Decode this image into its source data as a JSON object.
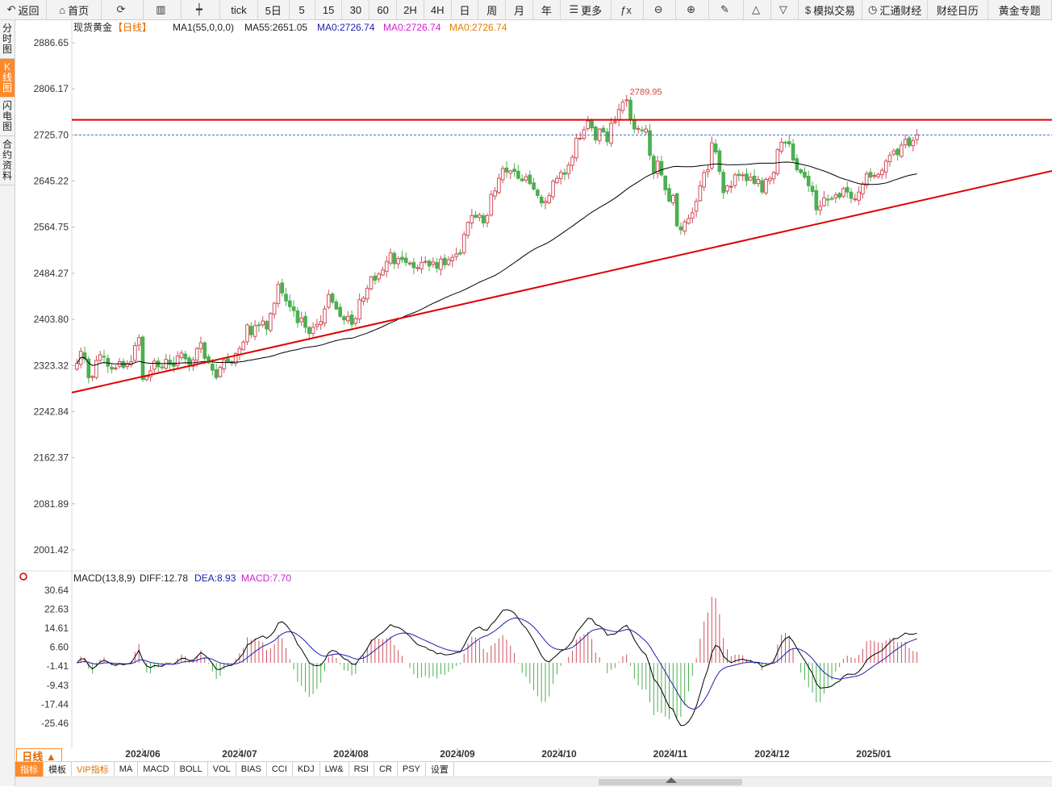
{
  "toolbar": {
    "items": [
      {
        "name": "back-button",
        "icon": "↶",
        "label": "返回"
      },
      {
        "name": "home-button",
        "icon": "⌂",
        "label": "首页"
      },
      {
        "name": "refresh-button",
        "icon": "⟳",
        "label": ""
      },
      {
        "name": "chart-type-button",
        "icon": "▥",
        "label": ""
      },
      {
        "name": "candle-type-button",
        "icon": "┿",
        "label": ""
      },
      {
        "name": "period-tick",
        "icon": "",
        "label": "tick"
      },
      {
        "name": "period-5day",
        "icon": "",
        "label": "5日"
      },
      {
        "name": "period-5",
        "icon": "",
        "label": "5"
      },
      {
        "name": "period-15",
        "icon": "",
        "label": "15"
      },
      {
        "name": "period-30",
        "icon": "",
        "label": "30"
      },
      {
        "name": "period-60",
        "icon": "",
        "label": "60"
      },
      {
        "name": "period-2h",
        "icon": "",
        "label": "2H"
      },
      {
        "name": "period-4h",
        "icon": "",
        "label": "4H"
      },
      {
        "name": "period-day",
        "icon": "",
        "label": "日"
      },
      {
        "name": "period-week",
        "icon": "",
        "label": "周"
      },
      {
        "name": "period-month",
        "icon": "",
        "label": "月"
      },
      {
        "name": "period-year",
        "icon": "",
        "label": "年"
      },
      {
        "name": "more-button",
        "icon": "☰",
        "label": "更多"
      },
      {
        "name": "formula-button",
        "icon": "ƒx",
        "label": ""
      },
      {
        "name": "zoom-out-button",
        "icon": "⊖",
        "label": ""
      },
      {
        "name": "zoom-in-button",
        "icon": "⊕",
        "label": ""
      },
      {
        "name": "draw-button",
        "icon": "✎",
        "label": ""
      },
      {
        "name": "up-triangle-button",
        "icon": "△",
        "label": ""
      },
      {
        "name": "down-triangle-button",
        "icon": "▽",
        "label": ""
      },
      {
        "name": "sim-trade-button",
        "icon": "$",
        "label": "模拟交易"
      },
      {
        "name": "fx168-button",
        "icon": "◷",
        "label": "汇通财经"
      },
      {
        "name": "calendar-button",
        "icon": "",
        "label": "财经日历"
      },
      {
        "name": "gold-topic-button",
        "icon": "",
        "label": "黄金专题"
      }
    ]
  },
  "sidetabs": [
    {
      "label": "分时图",
      "active": false
    },
    {
      "label": "K线图",
      "active": true
    },
    {
      "label": "闪电图",
      "active": false
    },
    {
      "label": "合约资料",
      "active": false
    }
  ],
  "legend": {
    "symbol": "现货黄金",
    "period": "【日线】",
    "ma1": "MA1(55,0,0,0)",
    "ma55": "MA55:2651.05",
    "ma0_a": "MA0:2726.74",
    "ma0_b": "MA0:2726.74",
    "ma0_c": "MA0:2726.74"
  },
  "macd_legend": {
    "name": "MACD(13,8,9)",
    "diff": "DIFF:12.78",
    "dea": "DEA:8.93",
    "macd": "MACD:7.70"
  },
  "colors": {
    "up": "#d0505a",
    "down": "#4caf50",
    "trendline": "#e00000",
    "ma": "#000000",
    "diff": "#000000",
    "dea": "#2020b0",
    "current_price_line": "#3a6fd0",
    "peak_label": "#e04040"
  },
  "chart_data": [
    {
      "type": "candlestick",
      "title": "现货黄金 【日线】",
      "y_ticks": [
        2886.65,
        2806.17,
        2725.7,
        2645.22,
        2564.75,
        2484.27,
        2403.8,
        2323.32,
        2242.84,
        2162.37,
        2081.89,
        2001.42
      ],
      "ylim": [
        1969,
        2912
      ],
      "x_ticks": [
        "2024/06",
        "2024/07",
        "2024/08",
        "2024/09",
        "2024/10",
        "2024/11",
        "2024/12",
        "2025/01"
      ],
      "peak_label": "2789.95",
      "current_price": 2725.7,
      "horizontal_line": 2752,
      "ohlc_closes": [
        2327,
        2348,
        2335,
        2302,
        2304,
        2332,
        2342,
        2338,
        2322,
        2317,
        2319,
        2330,
        2320,
        2327,
        2330,
        2358,
        2372,
        2299,
        2304,
        2314,
        2331,
        2321,
        2320,
        2334,
        2325,
        2322,
        2340,
        2345,
        2335,
        2325,
        2333,
        2353,
        2363,
        2336,
        2328,
        2315,
        2302,
        2320,
        2333,
        2330,
        2327,
        2344,
        2353,
        2364,
        2394,
        2377,
        2393,
        2393,
        2401,
        2387,
        2414,
        2432,
        2465,
        2450,
        2436,
        2426,
        2419,
        2398,
        2406,
        2390,
        2379,
        2390,
        2395,
        2400,
        2422,
        2447,
        2434,
        2422,
        2409,
        2403,
        2409,
        2395,
        2405,
        2438,
        2441,
        2458,
        2478,
        2472,
        2483,
        2490,
        2505,
        2520,
        2501,
        2510,
        2508,
        2503,
        2502,
        2494,
        2494,
        2503,
        2505,
        2497,
        2504,
        2493,
        2509,
        2499,
        2508,
        2512,
        2518,
        2518,
        2552,
        2573,
        2585,
        2582,
        2586,
        2572,
        2585,
        2622,
        2628,
        2650,
        2667,
        2661,
        2663,
        2662,
        2650,
        2646,
        2653,
        2641,
        2631,
        2620,
        2607,
        2610,
        2620,
        2645,
        2650,
        2660,
        2657,
        2673,
        2687,
        2720,
        2720,
        2735,
        2750,
        2738,
        2717,
        2736,
        2731,
        2714,
        2746,
        2749,
        2770,
        2783,
        2787,
        2754,
        2736,
        2737,
        2733,
        2736,
        2690,
        2660,
        2680,
        2656,
        2630,
        2610,
        2620,
        2567,
        2560,
        2574,
        2580,
        2590,
        2610,
        2637,
        2660,
        2665,
        2712,
        2696,
        2662,
        2625,
        2637,
        2636,
        2656,
        2655,
        2656,
        2646,
        2652,
        2641,
        2648,
        2626,
        2648,
        2650,
        2660,
        2700,
        2713,
        2712,
        2710,
        2682,
        2665,
        2660,
        2652,
        2637,
        2627,
        2595,
        2601,
        2616,
        2612,
        2614,
        2621,
        2617,
        2632,
        2626,
        2615,
        2614,
        2626,
        2640,
        2658,
        2652,
        2655,
        2657,
        2664,
        2680,
        2690,
        2698,
        2691,
        2708,
        2718,
        2707,
        2716,
        2726
      ],
      "ma55_first": 2300,
      "ma55_last": 2651.05,
      "trendline": [
        [
          "2024/05/21",
          2276
        ],
        [
          "2025/01/28",
          2663
        ]
      ]
    },
    {
      "type": "bar+line",
      "title": "MACD(13,8,9)",
      "y_ticks": [
        30.64,
        22.63,
        14.61,
        6.6,
        -1.41,
        -9.43,
        -17.44,
        -25.46
      ],
      "ylim": [
        -36,
        33
      ],
      "series": [
        {
          "name": "DIFF",
          "last": 12.78
        },
        {
          "name": "DEA",
          "last": 8.93
        },
        {
          "name": "MACD",
          "last": 7.7
        }
      ]
    }
  ],
  "period_button": "日线 ▲",
  "bottom_tabs": [
    "指标",
    "模板",
    "VIP指标",
    "MA",
    "MACD",
    "BOLL",
    "VOL",
    "BIAS",
    "CCI",
    "KDJ",
    "LW&",
    "RSI",
    "CR",
    "PSY",
    "设置"
  ]
}
